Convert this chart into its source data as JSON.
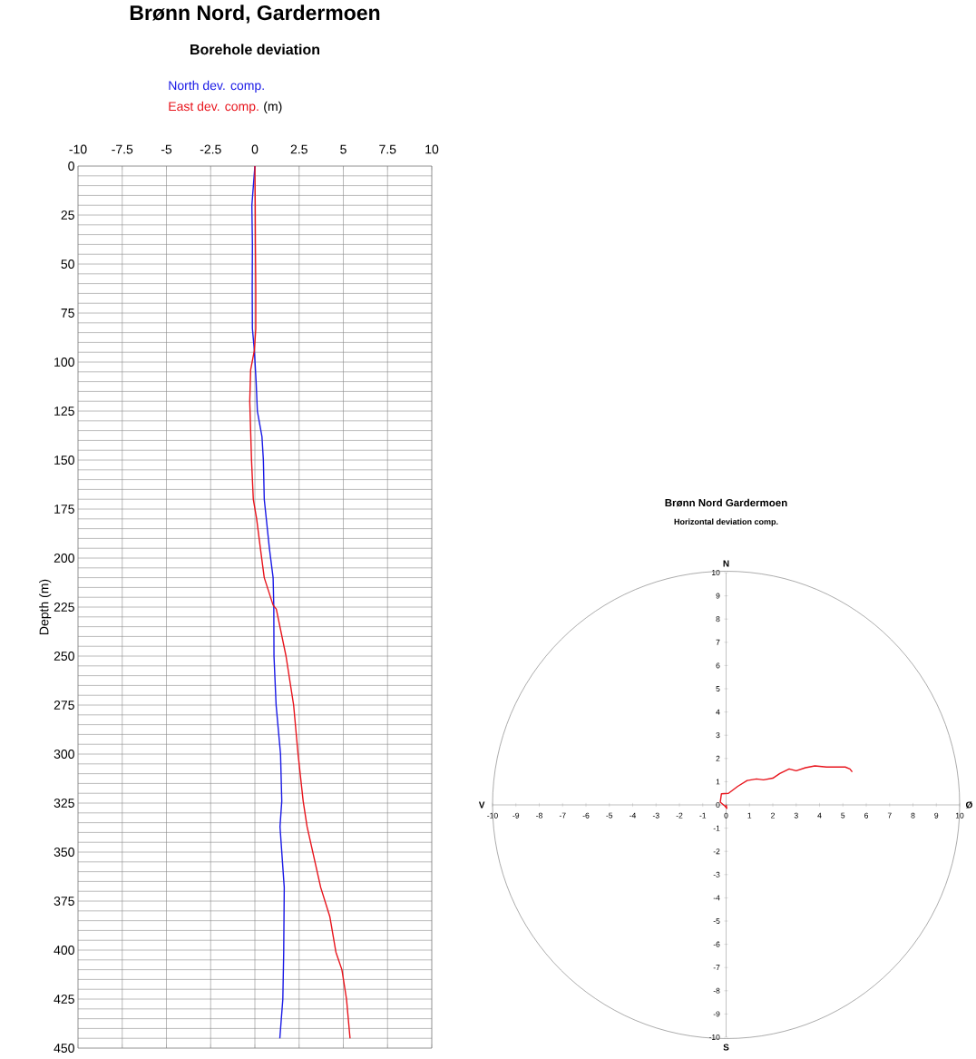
{
  "chart_data": [
    {
      "type": "line",
      "title": "Brønn Nord, Gardermoen",
      "subtitle": "Borehole deviation",
      "xlabel": "(m)",
      "ylabel": "Depth (m)",
      "series": [
        {
          "name": "North dev. comp.",
          "color": "#1a1ae6",
          "x": [
            0,
            -0.17,
            -0.14,
            -0.15,
            -0.14,
            -0.03,
            0.07,
            0.14,
            0.4,
            0.48,
            0.53,
            0.82,
            1.03,
            1.07,
            1.08,
            1.2,
            1.45,
            1.52,
            1.42,
            1.66,
            1.63,
            1.58,
            1.41
          ],
          "values": [
            0,
            20,
            40,
            63,
            83,
            94,
            110,
            125,
            138,
            150,
            170,
            195,
            210,
            225,
            250,
            275,
            300,
            324,
            337,
            368,
            401,
            425,
            445
          ]
        },
        {
          "name": "East dev. comp.",
          "color": "#e8141c",
          "x": [
            0,
            0.02,
            0.03,
            0.05,
            0.05,
            -0.03,
            -0.24,
            -0.29,
            -0.19,
            -0.09,
            0.1,
            0.31,
            0.53,
            1.03,
            1.21,
            1.76,
            2.19,
            2.44,
            2.73,
            2.95,
            3.72,
            4.24,
            4.58,
            4.92,
            5.18,
            5.38
          ],
          "values": [
            0,
            20,
            40,
            63,
            83,
            94,
            104,
            120,
            150,
            170,
            180,
            195,
            210,
            224,
            226,
            250,
            275,
            300,
            324,
            337,
            368,
            383,
            401,
            410,
            425,
            445
          ]
        }
      ],
      "xlim": [
        -10,
        10
      ],
      "ylim": [
        450,
        0
      ],
      "xticks": [
        -10,
        -7.5,
        -5,
        -2.5,
        0,
        2.5,
        5,
        7.5,
        10
      ],
      "yticks": [
        0,
        {
          "value": 5,
          "label": null
        },
        {
          "value": 10,
          "label": null
        },
        {
          "value": 15,
          "label": null
        },
        {
          "value": 20,
          "label": null
        },
        25,
        {
          "value": 30,
          "label": null
        },
        {
          "value": 35,
          "label": null
        },
        {
          "value": 40,
          "label": null
        },
        {
          "value": 45,
          "label": null
        },
        50,
        {
          "value": 55,
          "label": null
        },
        {
          "value": 60,
          "label": null
        },
        {
          "value": 65,
          "label": null
        },
        {
          "value": 70,
          "label": null
        },
        75,
        {
          "value": 80,
          "label": null
        },
        {
          "value": 85,
          "label": null
        },
        {
          "value": 90,
          "label": null
        },
        {
          "value": 95,
          "label": null
        },
        100,
        {
          "value": 105,
          "label": null
        },
        {
          "value": 110,
          "label": null
        },
        {
          "value": 115,
          "label": null
        },
        {
          "value": 120,
          "label": null
        },
        125,
        {
          "value": 130,
          "label": null
        },
        {
          "value": 135,
          "label": null
        },
        {
          "value": 140,
          "label": null
        },
        {
          "value": 145,
          "label": null
        },
        150,
        {
          "value": 155,
          "label": null
        },
        {
          "value": 160,
          "label": null
        },
        {
          "value": 165,
          "label": null
        },
        {
          "value": 170,
          "label": null
        },
        175,
        {
          "value": 180,
          "label": null
        },
        {
          "value": 185,
          "label": null
        },
        {
          "value": 190,
          "label": null
        },
        {
          "value": 195,
          "label": null
        },
        200,
        {
          "value": 205,
          "label": null
        },
        {
          "value": 210,
          "label": null
        },
        {
          "value": 215,
          "label": null
        },
        {
          "value": 220,
          "label": null
        },
        225,
        {
          "value": 230,
          "label": null
        },
        {
          "value": 235,
          "label": null
        },
        {
          "value": 240,
          "label": null
        },
        {
          "value": 245,
          "label": null
        },
        250,
        {
          "value": 255,
          "label": null
        },
        {
          "value": 260,
          "label": null
        },
        {
          "value": 265,
          "label": null
        },
        {
          "value": 270,
          "label": null
        },
        275,
        {
          "value": 280,
          "label": null
        },
        {
          "value": 285,
          "label": null
        },
        {
          "value": 290,
          "label": null
        },
        {
          "value": 295,
          "label": null
        },
        300,
        {
          "value": 305,
          "label": null
        },
        {
          "value": 310,
          "label": null
        },
        {
          "value": 315,
          "label": null
        },
        {
          "value": 320,
          "label": null
        },
        325,
        {
          "value": 330,
          "label": null
        },
        {
          "value": 335,
          "label": null
        },
        {
          "value": 340,
          "label": null
        },
        {
          "value": 345,
          "label": null
        },
        350,
        {
          "value": 355,
          "label": null
        },
        {
          "value": 360,
          "label": null
        },
        {
          "value": 365,
          "label": null
        },
        {
          "value": 370,
          "label": null
        },
        375,
        {
          "value": 380,
          "label": null
        },
        {
          "value": 385,
          "label": null
        },
        {
          "value": 390,
          "label": null
        },
        {
          "value": 395,
          "label": null
        },
        400,
        {
          "value": 405,
          "label": null
        },
        {
          "value": 410,
          "label": null
        },
        {
          "value": 415,
          "label": null
        },
        {
          "value": 420,
          "label": null
        },
        425,
        {
          "value": 430,
          "label": null
        },
        {
          "value": 435,
          "label": null
        },
        {
          "value": 440,
          "label": null
        },
        {
          "value": 445,
          "label": null
        },
        450
      ],
      "grid": true
    },
    {
      "type": "line",
      "title": "Brønn Nord Gardermoen",
      "subtitle": "Horizontal deviation comp.",
      "series": [
        {
          "color": "#e8141c",
          "x": [
            0,
            0.03,
            -0.05,
            -0.25,
            -0.2,
            0.1,
            0.5,
            0.9,
            1.3,
            1.6,
            2.0,
            2.3,
            2.7,
            3.0,
            3.4,
            3.8,
            4.3,
            4.8,
            5.1,
            5.3,
            5.4
          ],
          "values": [
            0,
            -0.15,
            -0.05,
            0.12,
            0.48,
            0.5,
            0.8,
            1.05,
            1.12,
            1.08,
            1.15,
            1.35,
            1.55,
            1.47,
            1.6,
            1.68,
            1.63,
            1.63,
            1.63,
            1.55,
            1.42
          ]
        }
      ],
      "xlim": [
        -10,
        10
      ],
      "ylim": [
        -10,
        10
      ],
      "xticks": [
        -10,
        -9,
        -8,
        -7,
        -6,
        -5,
        -4,
        -3,
        -2,
        -1,
        0,
        1,
        2,
        3,
        4,
        5,
        6,
        7,
        8,
        9,
        10
      ],
      "yticks": [
        -10,
        -9,
        -8,
        -7,
        -6,
        -5,
        -4,
        -3,
        -2,
        -1,
        0,
        1,
        2,
        3,
        4,
        5,
        6,
        7,
        8,
        9,
        10
      ],
      "annotations": [
        "N",
        "V",
        "Ø",
        "S"
      ]
    }
  ]
}
